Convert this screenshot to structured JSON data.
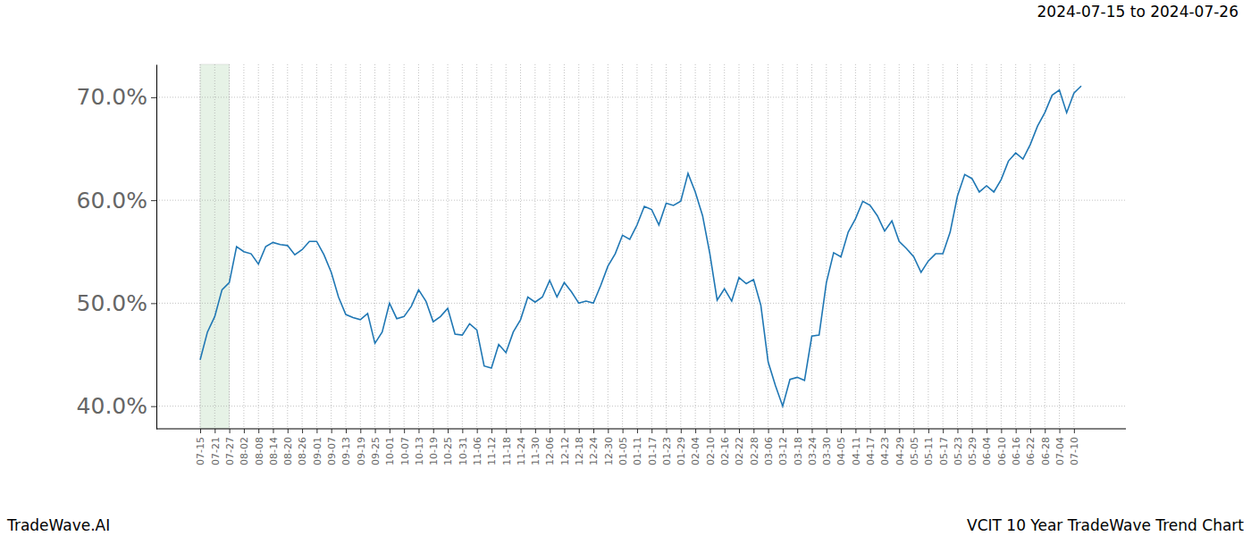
{
  "chart_data": {
    "type": "line",
    "title": "VCIT 10 Year TradeWave Trend Chart",
    "subtitle": "2024-07-15 to 2024-07-26",
    "annotations": [
      "TradeWave.AI"
    ],
    "highlight_range": [
      "07-15",
      "07-27"
    ],
    "color": "#1f77b4",
    "grid": true,
    "categories": [
      "07-15",
      null,
      "07-21",
      null,
      "07-27",
      null,
      "08-02",
      null,
      "08-08",
      null,
      "08-14",
      null,
      "08-20",
      null,
      "08-26",
      null,
      "09-01",
      null,
      "09-07",
      null,
      "09-13",
      null,
      "09-19",
      null,
      "09-25",
      null,
      "10-01",
      null,
      "10-07",
      null,
      "10-13",
      null,
      "10-19",
      null,
      "10-25",
      null,
      "10-31",
      null,
      "11-06",
      null,
      "11-12",
      null,
      "11-18",
      null,
      "11-24",
      null,
      "11-30",
      null,
      "12-06",
      null,
      "12-12",
      null,
      "12-18",
      null,
      "12-24",
      null,
      "12-30",
      null,
      "01-05",
      null,
      "01-11",
      null,
      "01-17",
      null,
      "01-23",
      null,
      "01-29",
      null,
      "02-04",
      null,
      "02-10",
      null,
      "02-16",
      null,
      "02-22",
      null,
      "02-28",
      null,
      "03-06",
      null,
      "03-12",
      null,
      "03-18",
      null,
      "03-24",
      null,
      "03-30",
      null,
      "04-05",
      null,
      "04-11",
      null,
      "04-17",
      null,
      "04-23",
      null,
      "04-29",
      null,
      "05-05",
      null,
      "05-11",
      null,
      "05-17",
      null,
      "05-23",
      null,
      "05-29",
      null,
      "06-04",
      null,
      "06-10",
      null,
      "06-16",
      null,
      "06-22",
      null,
      "06-28",
      null,
      "07-04",
      null,
      "07-10",
      null
    ],
    "values": [
      44.5,
      47.2,
      48.7,
      51.3,
      52.0,
      55.5,
      55.0,
      54.8,
      53.8,
      55.5,
      55.9,
      55.7,
      55.6,
      54.7,
      55.2,
      56.0,
      56.0,
      54.7,
      53.0,
      50.6,
      48.9,
      48.6,
      48.4,
      49.0,
      46.1,
      47.2,
      50.0,
      48.5,
      48.7,
      49.7,
      51.3,
      50.2,
      48.2,
      48.7,
      49.5,
      47.0,
      46.9,
      48.0,
      47.4,
      43.9,
      43.7,
      46.0,
      45.2,
      47.2,
      48.4,
      50.6,
      50.1,
      50.6,
      52.2,
      50.6,
      52.0,
      51.1,
      50.0,
      50.2,
      50.0,
      51.7,
      53.6,
      54.8,
      56.6,
      56.2,
      57.6,
      59.4,
      59.1,
      57.6,
      59.7,
      59.5,
      59.9,
      62.6,
      60.8,
      58.5,
      54.8,
      50.3,
      51.4,
      50.2,
      52.5,
      51.9,
      52.3,
      49.8,
      44.3,
      42.0,
      40.0,
      42.6,
      42.8,
      42.5,
      46.8,
      46.9,
      52.0,
      54.9,
      54.5,
      56.9,
      58.2,
      59.9,
      59.5,
      58.5,
      57.0,
      58.0,
      56.0,
      55.3,
      54.5,
      53.0,
      54.1,
      54.8,
      54.8,
      56.9,
      60.4,
      62.5,
      62.1,
      60.8,
      61.4,
      60.8,
      62.0,
      63.8,
      64.6,
      64.0,
      65.4,
      67.2,
      68.5,
      70.2,
      70.7,
      68.5,
      70.4,
      71.1
    ],
    "ylim": [
      37.8,
      73.2
    ],
    "yticks": [
      {
        "value": 40,
        "label": "40.0%"
      },
      {
        "value": 50,
        "label": "50.0%"
      },
      {
        "value": 60,
        "label": "60.0%"
      },
      {
        "value": 70,
        "label": "70.0%"
      }
    ]
  }
}
